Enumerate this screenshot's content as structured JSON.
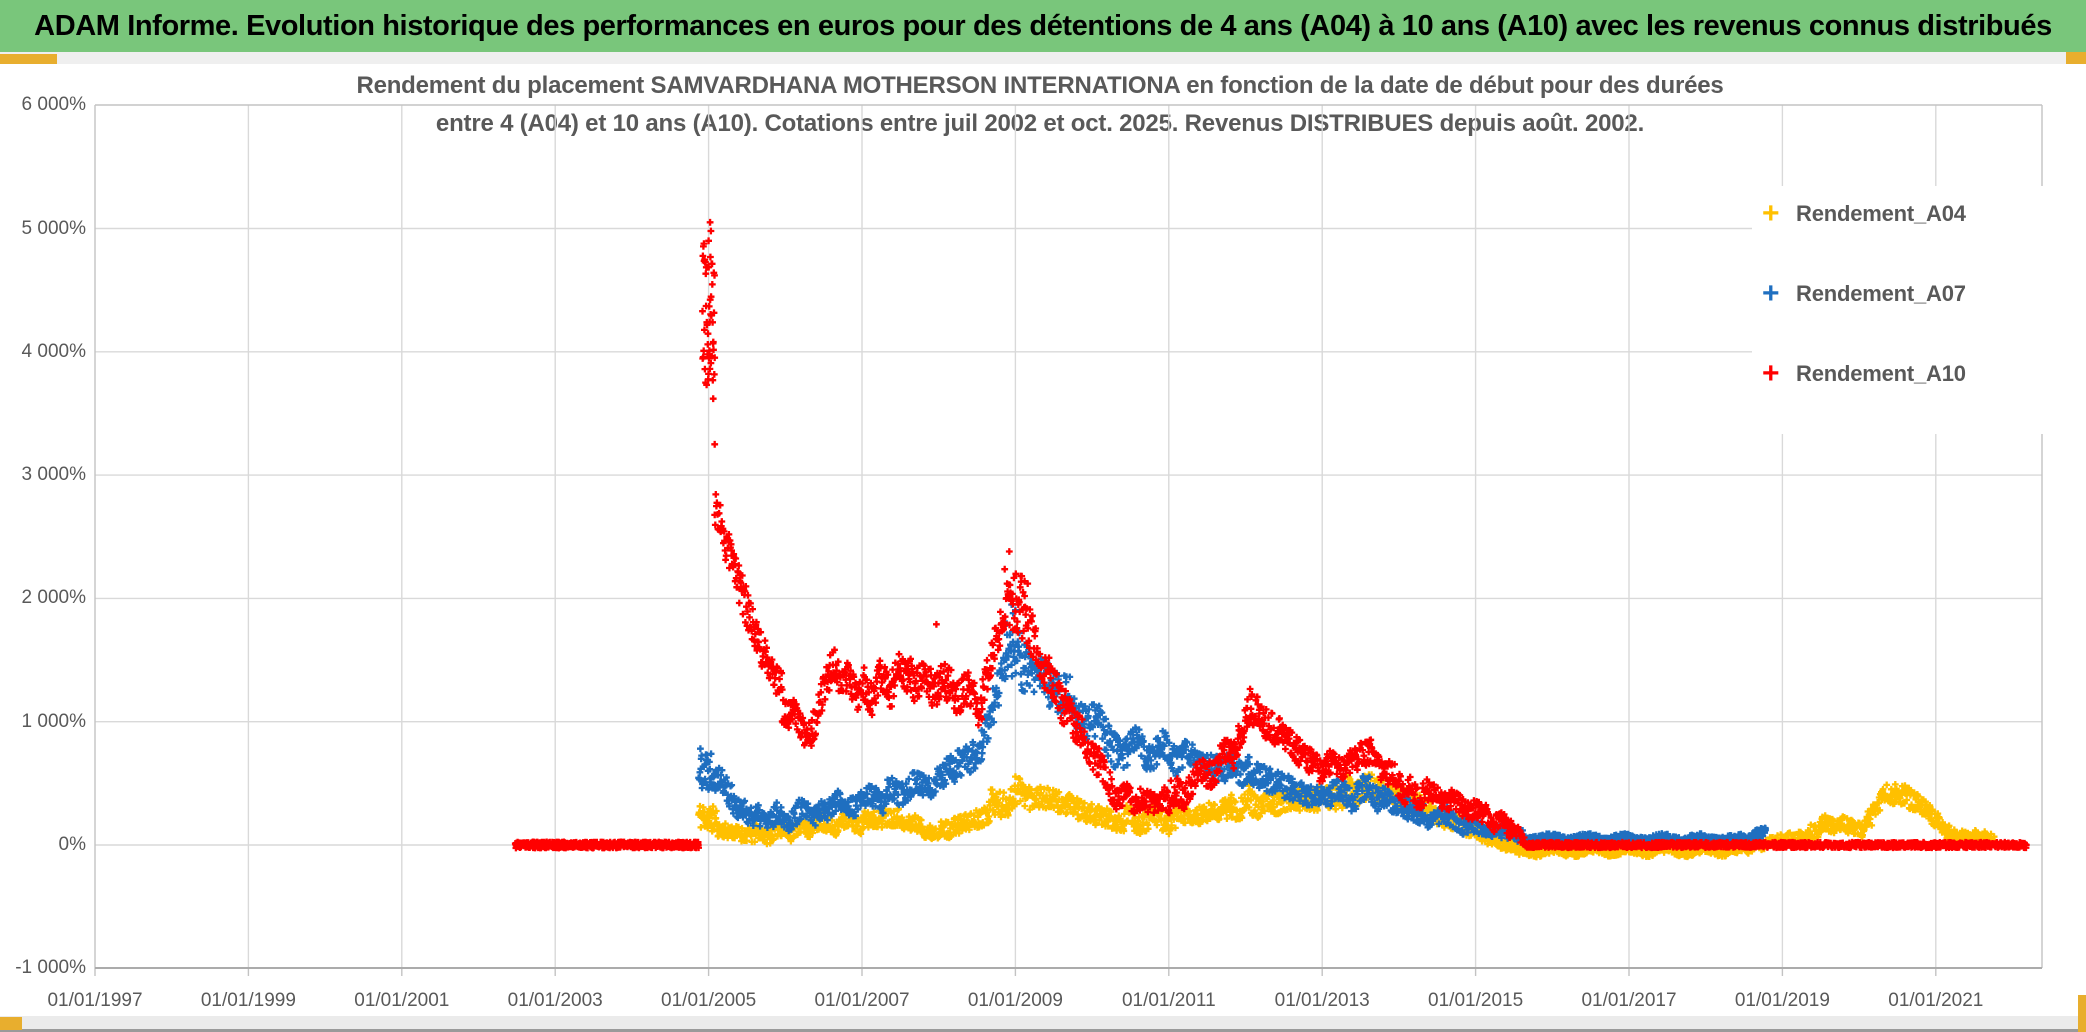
{
  "header": {
    "title": "ADAM Informe. Evolution historique des performances en euros pour des détentions de 4 ans (A04) à 10 ans (A10) avec les revenus connus distribués",
    "bg_color": "#79C67B",
    "accent_color": "#E8AE2E"
  },
  "chart_data": {
    "type": "scatter",
    "title_lines": [
      "Rendement du placement SAMVARDHANA MOTHERSON INTERNATIONA en fonction de la date de début pour des durées",
      "entre 4 (A04) et 10 ans (A10). Cotations entre juil 2002 et oct. 2025. Revenus DISTRIBUES depuis août. 2002."
    ],
    "grid": true,
    "legend_position": "right",
    "x_axis": {
      "tick_labels": [
        "01/01/1997",
        "01/01/1999",
        "01/01/2001",
        "01/01/2003",
        "01/01/2005",
        "01/01/2007",
        "01/01/2009",
        "01/01/2011",
        "01/01/2013",
        "01/01/2015",
        "01/01/2017",
        "01/01/2019",
        "01/01/2021"
      ],
      "tick_years": [
        1997,
        1999,
        2001,
        2003,
        2005,
        2007,
        2009,
        2011,
        2013,
        2015,
        2017,
        2019,
        2021
      ],
      "range_years": [
        1997,
        2022.4
      ]
    },
    "y_axis": {
      "tick_labels": [
        "6 000%",
        "5 000%",
        "4 000%",
        "3 000%",
        "2 000%",
        "1 000%",
        "0%",
        "-1 000%"
      ],
      "tick_values": [
        6000,
        5000,
        4000,
        3000,
        2000,
        1000,
        0,
        -1000
      ],
      "range": [
        -1000,
        6000
      ],
      "unit": "%"
    },
    "legend": [
      {
        "label": "Rendement_A04",
        "color": "#FFC000",
        "marker": "+"
      },
      {
        "label": "Rendement_A07",
        "color": "#1F6FC0",
        "marker": "+"
      },
      {
        "label": "Rendement_A10",
        "color": "#FF0000",
        "marker": "+"
      }
    ],
    "series": [
      {
        "name": "Rendement_A04",
        "color": "#FFC000",
        "seed": 11,
        "segments": [
          [
            2004.87,
            2005.1,
            240,
            200,
            110,
            40,
            0,
            0
          ],
          [
            2005.1,
            2005.6,
            130,
            70,
            60,
            68,
            0,
            0
          ],
          [
            2005.6,
            2006.32,
            85,
            140,
            65,
            100,
            25,
            2.5
          ],
          [
            2006.32,
            2007.02,
            150,
            190,
            70,
            98,
            30,
            2
          ],
          [
            2007.02,
            2007.52,
            200,
            235,
            75,
            72,
            0,
            0
          ],
          [
            2007.52,
            2008.06,
            180,
            100,
            65,
            76,
            25,
            1.5
          ],
          [
            2008.06,
            2008.66,
            115,
            250,
            75,
            86,
            0,
            0
          ],
          [
            2008.66,
            2009.26,
            330,
            430,
            110,
            84,
            40,
            1.5
          ],
          [
            2009.26,
            2009.82,
            400,
            300,
            90,
            78,
            0,
            0
          ],
          [
            2009.82,
            2010.42,
            280,
            180,
            80,
            84,
            0,
            0
          ],
          [
            2010.42,
            2011.32,
            200,
            210,
            80,
            128,
            40,
            2.5
          ],
          [
            2011.32,
            2011.78,
            220,
            300,
            85,
            64,
            0,
            0
          ],
          [
            2011.78,
            2012.22,
            320,
            320,
            95,
            62,
            35,
            1.5
          ],
          [
            2012.22,
            2012.78,
            340,
            360,
            95,
            78,
            0,
            0
          ],
          [
            2012.78,
            2013.32,
            370,
            390,
            95,
            76,
            0,
            0
          ],
          [
            2013.32,
            2013.82,
            440,
            460,
            105,
            72,
            35,
            1.5
          ],
          [
            2013.82,
            2014.42,
            430,
            280,
            90,
            84,
            0,
            0
          ],
          [
            2014.42,
            2015.12,
            250,
            90,
            70,
            98,
            0,
            0
          ],
          [
            2015.12,
            2015.62,
            60,
            -40,
            50,
            70,
            0,
            0
          ],
          [
            2015.62,
            2018.56,
            -45,
            -40,
            38,
            580,
            18,
            6
          ],
          [
            2018.56,
            2019.32,
            -15,
            80,
            50,
            110,
            0,
            0
          ],
          [
            2019.32,
            2019.76,
            100,
            200,
            70,
            62,
            30,
            1.5
          ],
          [
            2019.76,
            2020.06,
            180,
            110,
            60,
            44,
            0,
            0
          ],
          [
            2020.06,
            2020.36,
            150,
            410,
            85,
            44,
            0,
            0
          ],
          [
            2020.36,
            2020.62,
            420,
            400,
            85,
            38,
            0,
            0
          ],
          [
            2020.62,
            2020.88,
            390,
            300,
            85,
            38,
            0,
            0
          ],
          [
            2020.88,
            2021.18,
            280,
            90,
            70,
            44,
            0,
            0
          ],
          [
            2021.18,
            2021.76,
            75,
            60,
            40,
            86,
            15,
            4
          ]
        ],
        "extras": [
          [
            2009.0,
            555
          ],
          [
            2009.05,
            540
          ],
          [
            2012.05,
            480
          ],
          [
            2013.55,
            560
          ],
          [
            2020.42,
            452
          ],
          [
            2020.45,
            438
          ]
        ]
      },
      {
        "name": "Rendement_A07",
        "color": "#1F6FC0",
        "seed": 22,
        "segments": [
          [
            2004.87,
            2005.1,
            640,
            620,
            180,
            42,
            0,
            0
          ],
          [
            2005.1,
            2005.36,
            580,
            340,
            120,
            36,
            0,
            0
          ],
          [
            2005.36,
            2005.76,
            290,
            210,
            90,
            55,
            0,
            0
          ],
          [
            2005.76,
            2006.52,
            210,
            280,
            88,
            108,
            40,
            2.5
          ],
          [
            2006.52,
            2007.32,
            300,
            390,
            90,
            112,
            40,
            2
          ],
          [
            2007.32,
            2008.02,
            410,
            530,
            100,
            100,
            45,
            2
          ],
          [
            2008.02,
            2008.56,
            560,
            760,
            120,
            76,
            0,
            0
          ],
          [
            2008.56,
            2008.88,
            820,
            1480,
            150,
            46,
            0,
            0
          ],
          [
            2008.88,
            2009.12,
            1620,
            1450,
            240,
            36,
            0,
            0
          ],
          [
            2009.12,
            2009.56,
            1450,
            1240,
            180,
            62,
            0,
            0
          ],
          [
            2009.56,
            2010.32,
            1240,
            810,
            150,
            108,
            60,
            2
          ],
          [
            2010.32,
            2011.22,
            800,
            740,
            120,
            130,
            70,
            2.5
          ],
          [
            2011.22,
            2011.58,
            740,
            610,
            110,
            50,
            0,
            0
          ],
          [
            2011.58,
            2012.02,
            640,
            630,
            110,
            62,
            40,
            1.5
          ],
          [
            2012.02,
            2012.32,
            610,
            530,
            110,
            44,
            0,
            0
          ],
          [
            2012.32,
            2012.78,
            530,
            410,
            100,
            64,
            0,
            0
          ],
          [
            2012.78,
            2013.12,
            390,
            380,
            90,
            48,
            0,
            0
          ],
          [
            2013.12,
            2013.82,
            420,
            420,
            100,
            100,
            50,
            2
          ],
          [
            2013.82,
            2014.32,
            360,
            250,
            85,
            72,
            0,
            0
          ],
          [
            2014.32,
            2015.02,
            250,
            160,
            70,
            98,
            30,
            1.5
          ],
          [
            2015.02,
            2015.62,
            140,
            70,
            50,
            84,
            0,
            0
          ],
          [
            2015.62,
            2018.56,
            50,
            45,
            32,
            580,
            15,
            6
          ],
          [
            2018.56,
            2018.78,
            60,
            110,
            40,
            38,
            0,
            0
          ]
        ],
        "extras": [
          [
            2008.95,
            1950
          ],
          [
            2008.97,
            1880
          ],
          [
            2009.0,
            1905
          ],
          [
            2018.78,
            120
          ]
        ]
      },
      {
        "name": "Rendement_A10",
        "color": "#FF0000",
        "seed": 33,
        "segments": [
          [
            2002.48,
            2004.87,
            0,
            0,
            25,
            650,
            0,
            0
          ],
          [
            2004.92,
            2005.08,
            4300,
            4300,
            580,
            52,
            0,
            0
          ],
          [
            2005.08,
            2005.3,
            2750,
            2300,
            170,
            32,
            0,
            0
          ],
          [
            2005.3,
            2005.56,
            2300,
            1800,
            160,
            40,
            0,
            0
          ],
          [
            2005.56,
            2005.96,
            1780,
            1250,
            140,
            58,
            30,
            2
          ],
          [
            2005.96,
            2006.34,
            1130,
            890,
            110,
            55,
            40,
            1.5
          ],
          [
            2006.34,
            2006.62,
            920,
            1480,
            130,
            42,
            0,
            0
          ],
          [
            2006.62,
            2007.02,
            1430,
            1210,
            120,
            58,
            50,
            2
          ],
          [
            2007.02,
            2007.62,
            1230,
            1400,
            140,
            88,
            80,
            2.5
          ],
          [
            2007.62,
            2008.12,
            1380,
            1260,
            140,
            74,
            60,
            2
          ],
          [
            2008.12,
            2008.56,
            1280,
            1160,
            140,
            64,
            70,
            1.5
          ],
          [
            2008.56,
            2008.86,
            1230,
            1880,
            150,
            44,
            0,
            0
          ],
          [
            2008.86,
            2009.12,
            2050,
            1900,
            260,
            42,
            0,
            0
          ],
          [
            2009.12,
            2009.32,
            1880,
            1520,
            190,
            30,
            0,
            0
          ],
          [
            2009.32,
            2009.8,
            1500,
            950,
            150,
            70,
            40,
            2
          ],
          [
            2009.8,
            2010.26,
            950,
            480,
            120,
            66,
            30,
            1.5
          ],
          [
            2010.26,
            2011.02,
            400,
            330,
            100,
            110,
            40,
            3
          ],
          [
            2011.02,
            2011.86,
            360,
            760,
            115,
            122,
            50,
            2.5
          ],
          [
            2011.86,
            2012.02,
            780,
            1020,
            120,
            24,
            0,
            0
          ],
          [
            2012.02,
            2012.18,
            1120,
            1080,
            140,
            26,
            0,
            0
          ],
          [
            2012.18,
            2012.52,
            1020,
            880,
            120,
            50,
            0,
            0
          ],
          [
            2012.52,
            2012.82,
            880,
            660,
            110,
            44,
            0,
            0
          ],
          [
            2012.82,
            2013.36,
            650,
            640,
            100,
            78,
            40,
            2
          ],
          [
            2013.36,
            2013.62,
            680,
            760,
            105,
            38,
            0,
            0
          ],
          [
            2013.62,
            2014.12,
            740,
            430,
            100,
            72,
            40,
            2
          ],
          [
            2014.12,
            2014.56,
            430,
            400,
            95,
            64,
            45,
            1.5
          ],
          [
            2014.56,
            2015.12,
            390,
            230,
            80,
            80,
            30,
            2
          ],
          [
            2015.12,
            2015.46,
            230,
            160,
            70,
            48,
            40,
            1.5
          ],
          [
            2015.46,
            2015.64,
            170,
            30,
            50,
            26,
            0,
            0
          ],
          [
            2015.64,
            2022.18,
            0,
            0,
            22,
            1450,
            0,
            0
          ]
        ],
        "extras": [
          [
            2005.02,
            5050
          ],
          [
            2005.03,
            4980
          ],
          [
            2005.0,
            4900
          ],
          [
            2005.06,
            3620
          ],
          [
            2005.08,
            3250
          ],
          [
            2007.97,
            1790
          ],
          [
            2008.92,
            2380
          ],
          [
            2009.16,
            2120
          ],
          [
            2012.06,
            1265
          ]
        ]
      }
    ],
    "plot_colors": {
      "gridline": "#D9D9D9",
      "border": "#C3C3C3",
      "bottom_axis": "#ABABAB",
      "text": "#595959"
    }
  },
  "footer": {
    "strip_color": "#ebebeb",
    "edge_line_color": "#9a9a9a"
  }
}
